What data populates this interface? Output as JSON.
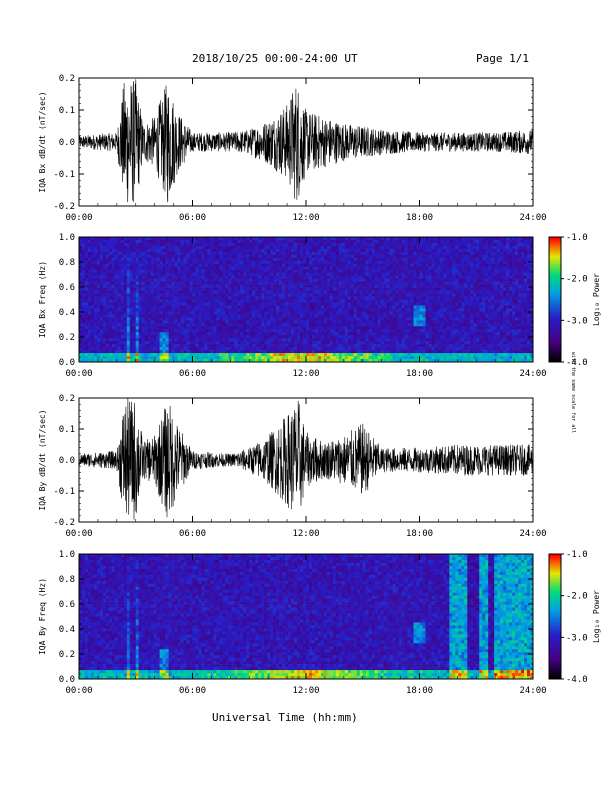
{
  "header": {
    "title": "2018/10/25  00:00-24:00 UT",
    "page": "Page 1/1"
  },
  "x_axis_title": "Universal Time (hh:mm)",
  "units_note": "with the same scale for all",
  "colorbar": {
    "label": "Log₁₀ Power",
    "ticks": [
      "-1.0",
      "-2.0",
      "-3.0",
      "-4.0"
    ]
  },
  "chart_data": [
    {
      "type": "line",
      "ylabel": "IQA Bx dB/dt (nT/sec)",
      "xticks": [
        "00:00",
        "06:00",
        "12:00",
        "18:00",
        "24:00"
      ],
      "yticks": [
        "0.2",
        "0.1",
        "0.0",
        "-0.1",
        "-0.2"
      ],
      "xlim": [
        0,
        24
      ],
      "ylim": [
        -0.2,
        0.2
      ],
      "envelope": [
        [
          0,
          0.02
        ],
        [
          2,
          0.03
        ],
        [
          2.4,
          0.2
        ],
        [
          3,
          0.2
        ],
        [
          3.4,
          0.06
        ],
        [
          4,
          0.08
        ],
        [
          4.7,
          0.2
        ],
        [
          5.2,
          0.1
        ],
        [
          6,
          0.03
        ],
        [
          8,
          0.03
        ],
        [
          9,
          0.04
        ],
        [
          10,
          0.07
        ],
        [
          11,
          0.12
        ],
        [
          11.5,
          0.2
        ],
        [
          12,
          0.1
        ],
        [
          13,
          0.08
        ],
        [
          14,
          0.06
        ],
        [
          16,
          0.04
        ],
        [
          18,
          0.03
        ],
        [
          20,
          0.03
        ],
        [
          22,
          0.03
        ],
        [
          24,
          0.04
        ]
      ]
    },
    {
      "type": "heatmap",
      "ylabel": "IQA Bx Freq (Hz)",
      "xticks": [
        "00:00",
        "06:00",
        "12:00",
        "18:00",
        "24:00"
      ],
      "yticks": [
        "1.0",
        "0.8",
        "0.6",
        "0.4",
        "0.2",
        "0.0"
      ],
      "xlim": [
        0,
        24
      ],
      "ylim": [
        0,
        1.0
      ],
      "colorbar_range": [
        -4.0,
        -1.0
      ]
    },
    {
      "type": "line",
      "ylabel": "IQA By dB/dt (nT/sec)",
      "xticks": [
        "00:00",
        "06:00",
        "12:00",
        "18:00",
        "24:00"
      ],
      "yticks": [
        "0.2",
        "0.1",
        "0.0",
        "-0.1",
        "-0.2"
      ],
      "xlim": [
        0,
        24
      ],
      "ylim": [
        -0.2,
        0.2
      ],
      "envelope": [
        [
          0,
          0.02
        ],
        [
          2,
          0.03
        ],
        [
          2.4,
          0.2
        ],
        [
          3,
          0.2
        ],
        [
          3.4,
          0.06
        ],
        [
          4,
          0.08
        ],
        [
          4.7,
          0.2
        ],
        [
          5.2,
          0.12
        ],
        [
          6,
          0.03
        ],
        [
          8,
          0.02
        ],
        [
          9,
          0.04
        ],
        [
          10,
          0.08
        ],
        [
          11,
          0.15
        ],
        [
          11.6,
          0.2
        ],
        [
          12,
          0.09
        ],
        [
          13,
          0.06
        ],
        [
          14,
          0.08
        ],
        [
          15,
          0.12
        ],
        [
          16,
          0.04
        ],
        [
          18,
          0.04
        ],
        [
          20,
          0.05
        ],
        [
          22,
          0.05
        ],
        [
          24,
          0.05
        ]
      ]
    },
    {
      "type": "heatmap",
      "ylabel": "IQA By Freq (Hz)",
      "xticks": [
        "00:00",
        "06:00",
        "12:00",
        "18:00",
        "24:00"
      ],
      "yticks": [
        "1.0",
        "0.8",
        "0.6",
        "0.4",
        "0.2",
        "0.0"
      ],
      "xlim": [
        0,
        24
      ],
      "ylim": [
        0,
        1.0
      ],
      "colorbar_range": [
        -4.0,
        -1.0
      ]
    }
  ],
  "colors": {
    "background": "#ffffff",
    "trace": "#000000"
  }
}
